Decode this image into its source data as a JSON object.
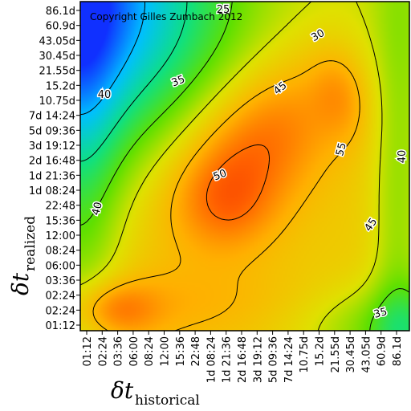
{
  "chart_data": {
    "type": "heatmap",
    "title": "",
    "annotation": "Copyright Gilles Zumbach 2012",
    "xlabel": {
      "symbol": "δt",
      "subscript": "historical"
    },
    "ylabel": {
      "symbol": "δt",
      "subscript": "realized"
    },
    "x_ticks": [
      "01:12",
      "02:24",
      "03:36",
      "06:00",
      "08:24",
      "12:00",
      "15:36",
      "22:48",
      "1d 08:24",
      "1d 21:36",
      "2d 16:48",
      "3d 19:12",
      "5d 09:36",
      "7d 14:24",
      "10.75d",
      "15.2d",
      "21.55d",
      "30.45d",
      "43.05d",
      "60.9d",
      "86.1d"
    ],
    "y_ticks": [
      "01:12",
      "02:24",
      "02:24",
      "03:36",
      "06:00",
      "08:24",
      "12:00",
      "15:36",
      "22:48",
      "1d 08:24",
      "1d 21:36",
      "2d 16:48",
      "3d 19:12",
      "5d 09:36",
      "7d 14:24",
      "10.75d",
      "15.2d",
      "21.55d",
      "30.45d",
      "43.05d",
      "60.9d",
      "86.1d"
    ],
    "contour_levels": [
      25,
      30,
      35,
      40,
      45,
      50,
      55
    ],
    "contour_labels": [
      {
        "text": "25",
        "level": 25
      },
      {
        "text": "30",
        "level": 30
      },
      {
        "text": "35",
        "level": 35
      },
      {
        "text": "40",
        "level": 40
      },
      {
        "text": "45",
        "level": 45
      },
      {
        "text": "50",
        "level": 50
      },
      {
        "text": "55",
        "level": 55
      },
      {
        "text": "40",
        "level": 40
      },
      {
        "text": "40",
        "level": 40
      },
      {
        "text": "45",
        "level": 45
      },
      {
        "text": "35",
        "level": 35
      }
    ],
    "colorscale": [
      "#1030ff",
      "#00c0ff",
      "#10e080",
      "#60e000",
      "#e0e000",
      "#ffb000",
      "#ff6000",
      "#f02000"
    ],
    "z_range": [
      20,
      56
    ],
    "grid": false,
    "legend": "none"
  }
}
